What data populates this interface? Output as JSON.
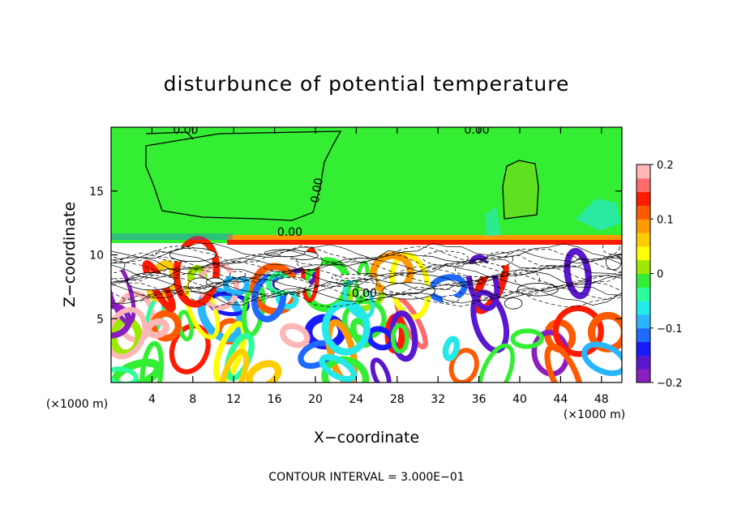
{
  "chart_data": {
    "type": "heatmap",
    "title": "disturbunce of potential temperature",
    "xlabel": "X−coordinate",
    "ylabel": "Z−coordinate",
    "x_unit_label": "(×1000 m)",
    "z_unit_label": "(×1000 m)",
    "footer": "CONTOUR INTERVAL = 3.000E−01",
    "xlim": [
      0,
      50
    ],
    "ylim": [
      0,
      20
    ],
    "x_ticks": [
      4,
      8,
      12,
      16,
      20,
      24,
      28,
      32,
      36,
      40,
      44,
      48
    ],
    "y_ticks": [
      5,
      10,
      15
    ],
    "colorbar": {
      "range": [
        -0.2,
        0.2
      ],
      "tick_values": [
        0.2,
        0.1,
        0,
        -0.1,
        -0.2
      ],
      "tick_labels": [
        "0.2",
        "0.1",
        "0",
        "−0.1",
        "−0.2"
      ],
      "colors": [
        "#8a1fbf",
        "#5a17d0",
        "#1a1aff",
        "#1f6bff",
        "#29b6ff",
        "#25e8e8",
        "#2cff9a",
        "#33ee33",
        "#9fe800",
        "#ffff00",
        "#ffcc00",
        "#ff9900",
        "#ff5a00",
        "#ff1a00",
        "#ff6a6a",
        "#ffb6b6"
      ]
    },
    "contour_labels": [
      {
        "text": "0.00",
        "x": 7.3,
        "z": 19.5
      },
      {
        "text": "0.00",
        "x": 35.8,
        "z": 19.5
      },
      {
        "text": "0.00",
        "x": 20.5,
        "z": 15.0
      },
      {
        "text": "0.00",
        "x": 17.5,
        "z": 11.5
      },
      {
        "text": "0.00",
        "x": 24.8,
        "z": 6.7
      }
    ],
    "regions": {
      "upper_layer_value": 0.0,
      "stable_band_z": [
        10.2,
        11.3
      ],
      "mixed_layer_top_z": 10.2
    }
  },
  "colors": {
    "background_green": "#33ee33",
    "white": "#ffffff"
  }
}
